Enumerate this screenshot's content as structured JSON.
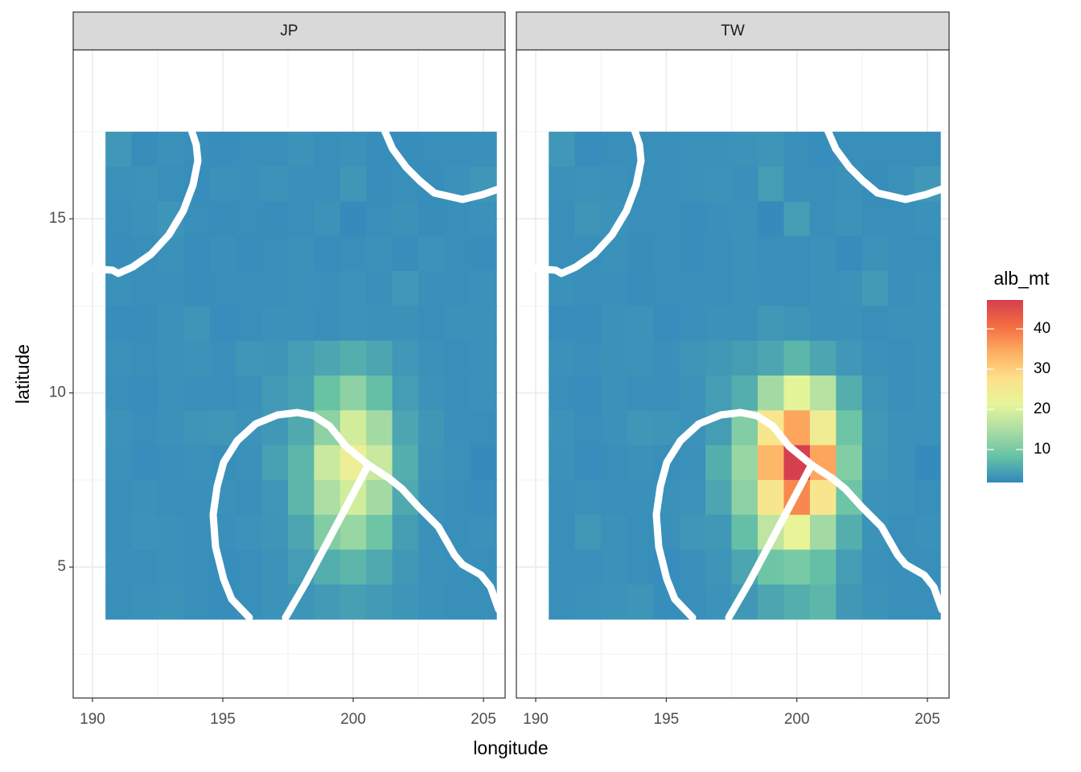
{
  "chart_data": {
    "type": "heatmap",
    "xlabel": "longitude",
    "ylabel": "latitude",
    "x": [
      191,
      192,
      193,
      194,
      195,
      196,
      197,
      198,
      199,
      200,
      201,
      202,
      203,
      204,
      205
    ],
    "y": [
      17,
      16,
      15,
      14,
      13,
      12,
      11,
      10,
      9,
      8,
      7,
      6,
      5,
      4
    ],
    "xlim": [
      189.26,
      205.83
    ],
    "ylim": [
      1.24,
      19.85
    ],
    "xticks": [
      190,
      195,
      200,
      205
    ],
    "yticks": [
      5,
      10,
      15
    ],
    "grid": true,
    "panels": [
      {
        "name": "JP",
        "values": [
          [
            3.5,
            2.5,
            2.8,
            2.6,
            2.4,
            2.6,
            2.6,
            3.0,
            2.6,
            2.8,
            2.5,
            2.5,
            2.6,
            2.6,
            2.7
          ],
          [
            2.8,
            3.0,
            2.6,
            2.4,
            2.8,
            2.7,
            3.0,
            2.7,
            2.6,
            3.4,
            2.5,
            2.6,
            2.5,
            2.8,
            3.4
          ],
          [
            2.6,
            2.8,
            3.2,
            2.6,
            2.5,
            2.6,
            2.5,
            2.6,
            3.0,
            2.2,
            2.6,
            2.9,
            2.5,
            2.6,
            2.8
          ],
          [
            2.5,
            2.6,
            2.8,
            2.5,
            2.7,
            2.5,
            2.6,
            2.8,
            2.4,
            2.6,
            2.8,
            2.5,
            3.0,
            2.6,
            2.5
          ],
          [
            2.8,
            2.6,
            2.7,
            2.5,
            2.6,
            2.7,
            2.6,
            2.8,
            2.7,
            3.0,
            2.7,
            3.5,
            2.7,
            2.6,
            2.8
          ],
          [
            2.4,
            2.5,
            2.8,
            3.2,
            2.4,
            2.6,
            2.8,
            2.8,
            2.6,
            3.0,
            2.8,
            2.9,
            2.6,
            2.8,
            2.8
          ],
          [
            2.8,
            2.6,
            2.9,
            3.0,
            2.7,
            3.4,
            3.2,
            4.0,
            5.0,
            6.0,
            5.0,
            3.5,
            2.8,
            2.6,
            2.8
          ],
          [
            2.6,
            2.4,
            2.8,
            2.6,
            2.6,
            2.8,
            3.8,
            4.5,
            8.5,
            12,
            8,
            4.0,
            3.0,
            2.6,
            2.8
          ],
          [
            3.0,
            2.6,
            2.8,
            3.2,
            3.4,
            3.0,
            3.6,
            5.5,
            12,
            19,
            14,
            5.0,
            3.4,
            2.7,
            2.6
          ],
          [
            2.8,
            2.4,
            2.6,
            2.8,
            2.6,
            2.8,
            4.5,
            7,
            18,
            23,
            18,
            6,
            3.2,
            2.8,
            2.2
          ],
          [
            2.6,
            2.8,
            2.6,
            2.7,
            2.8,
            2.6,
            3.4,
            7,
            15,
            19,
            14,
            5.5,
            3.0,
            2.6,
            2.4
          ],
          [
            2.6,
            3.0,
            2.8,
            2.6,
            2.7,
            3.0,
            3.2,
            5,
            11,
            13,
            9,
            4.2,
            2.8,
            2.6,
            2.8
          ],
          [
            2.7,
            2.6,
            2.8,
            2.6,
            2.4,
            2.6,
            3.0,
            4.0,
            6,
            7,
            5.5,
            3.6,
            2.8,
            2.7,
            2.6
          ],
          [
            2.6,
            2.8,
            3.0,
            2.6,
            2.5,
            2.6,
            3.0,
            3.2,
            3.8,
            4.4,
            3.8,
            3.2,
            2.8,
            2.6,
            2.6
          ]
        ]
      },
      {
        "name": "TW",
        "values": [
          [
            3.5,
            2.4,
            2.6,
            2.6,
            2.6,
            2.8,
            2.8,
            3.0,
            3.2,
            2.6,
            2.4,
            2.6,
            2.6,
            2.6,
            2.6
          ],
          [
            2.8,
            3.0,
            2.8,
            2.6,
            2.7,
            2.8,
            3.0,
            2.7,
            4.0,
            2.6,
            2.6,
            2.8,
            2.5,
            2.8,
            3.6
          ],
          [
            2.6,
            3.2,
            3.0,
            2.6,
            2.6,
            2.5,
            2.7,
            2.8,
            2.2,
            4.0,
            2.6,
            3.0,
            2.6,
            2.6,
            2.8
          ],
          [
            2.6,
            2.6,
            2.8,
            2.5,
            2.7,
            2.5,
            2.6,
            2.8,
            2.6,
            2.6,
            2.8,
            2.3,
            3.0,
            2.6,
            2.6
          ],
          [
            2.8,
            2.6,
            2.7,
            2.5,
            2.6,
            2.7,
            2.6,
            2.8,
            2.7,
            2.6,
            2.8,
            3.0,
            3.8,
            2.6,
            2.8
          ],
          [
            2.4,
            2.5,
            2.8,
            3.0,
            2.4,
            2.6,
            2.8,
            2.8,
            3.6,
            3.2,
            2.8,
            2.9,
            2.6,
            2.8,
            2.8
          ],
          [
            2.8,
            2.6,
            2.9,
            3.0,
            2.7,
            3.2,
            3.6,
            4.2,
            5.0,
            7,
            5.0,
            3.5,
            2.8,
            2.6,
            2.8
          ],
          [
            2.6,
            2.4,
            2.8,
            2.6,
            2.6,
            3.0,
            4.0,
            6,
            14,
            21,
            16,
            6,
            3.2,
            2.6,
            2.8
          ],
          [
            3.0,
            2.6,
            2.8,
            3.4,
            3.2,
            3.0,
            4.0,
            11,
            26,
            35,
            24,
            9,
            3.6,
            2.8,
            2.8
          ],
          [
            2.8,
            2.4,
            2.6,
            2.8,
            2.6,
            2.8,
            6,
            13,
            33,
            47,
            35,
            11,
            3.4,
            2.8,
            2.2
          ],
          [
            2.6,
            2.8,
            2.6,
            2.7,
            2.8,
            3.0,
            5,
            12,
            26,
            38,
            26,
            9,
            3.0,
            2.8,
            2.6
          ],
          [
            2.6,
            3.6,
            2.8,
            2.6,
            2.7,
            3.4,
            3.6,
            8,
            17,
            22,
            14,
            6,
            3.0,
            2.6,
            2.8
          ],
          [
            2.7,
            2.6,
            2.8,
            2.6,
            2.4,
            2.6,
            3.2,
            5,
            9,
            10,
            8,
            4,
            2.8,
            2.7,
            2.6
          ],
          [
            2.6,
            2.8,
            3.0,
            3.2,
            2.5,
            2.6,
            3.0,
            3.6,
            5,
            6,
            7,
            3.6,
            3.0,
            2.6,
            2.6
          ]
        ]
      }
    ],
    "colorbar": {
      "title": "alb_mt",
      "lim": [
        1.8,
        47.2
      ],
      "ticks": [
        10,
        20,
        30,
        40
      ],
      "colors": [
        "#3288BD",
        "#66C2A5",
        "#ABDDA4",
        "#E6F598",
        "#FEE08B",
        "#FDAE61",
        "#F46D43",
        "#D53E4F"
      ]
    }
  }
}
